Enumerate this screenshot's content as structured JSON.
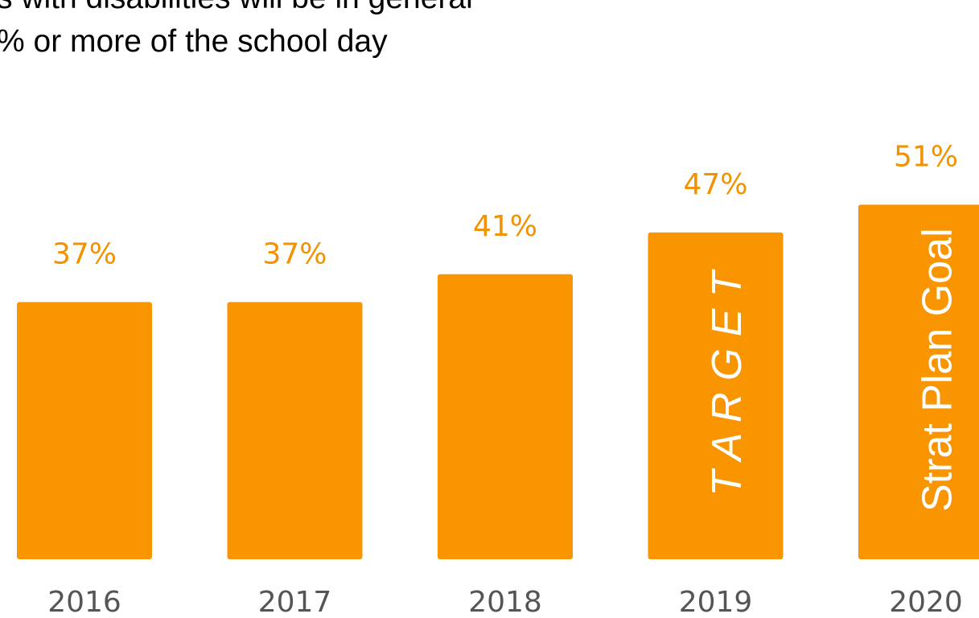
{
  "title_lines": [
    "s with disabilities will be in general",
    "% or more of the school day"
  ],
  "colors": {
    "bar": "#F99500",
    "value_label": "#F29200",
    "category_label": "#555555",
    "bar_text": "#ffffff",
    "title": "#000000"
  },
  "chart_data": {
    "type": "bar",
    "title": "",
    "xlabel": "",
    "ylabel": "",
    "categories": [
      "2016",
      "2017",
      "2018",
      "2019",
      "2020"
    ],
    "values": [
      37,
      37,
      41,
      47,
      51
    ],
    "value_labels": [
      "37%",
      "37%",
      "41%",
      "47%",
      "51%"
    ],
    "bar_annotations": [
      "",
      "",
      "",
      "T A R G E T",
      "Strat Plan Goal"
    ],
    "grid": false,
    "legend": "none"
  }
}
